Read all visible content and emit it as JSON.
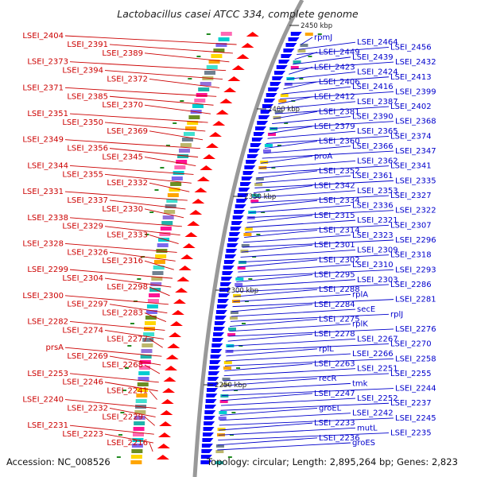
{
  "title": "Lactobacillus casei ATCC 334, complete genome",
  "footer": {
    "accession": "Accession: NC_008526",
    "summary": "Topology: circular; Length: 2,895,264 bp; Genes: 2,823"
  },
  "kbp_labels": [
    "2450 kbp",
    "2400 kbp",
    "2350 kbp",
    "2300 kbp",
    "2250 kbp"
  ],
  "colors": {
    "left_labels": "#cc0000",
    "right_labels": "#0000cc",
    "backbone": "#999999",
    "forward_genes": "#0000ff",
    "reverse_genes": "#ff0000",
    "rna_marks": "#228b22"
  },
  "left_labels": [
    "LSEI_2404",
    "LSEI_2391",
    "LSEI_2389",
    "LSEI_2373",
    "LSEI_2394",
    "LSEI_2372",
    "LSEI_2371",
    "LSEI_2385",
    "LSEI_2370",
    "LSEI_2351",
    "LSEI_2350",
    "LSEI_2369",
    "LSEI_2349",
    "LSEI_2356",
    "LSEI_2345",
    "LSEI_2344",
    "LSEI_2355",
    "LSEI_2332",
    "LSEI_2331",
    "LSEI_2337",
    "LSEI_2330",
    "LSEI_2338",
    "LSEI_2329",
    "LSEI_2333",
    "LSEI_2328",
    "LSEI_2326",
    "LSEI_2316",
    "LSEI_2299",
    "LSEI_2304",
    "LSEI_2298",
    "LSEI_2300",
    "LSEI_2297",
    "LSEI_2283",
    "LSEI_2282",
    "LSEI_2274",
    "LSEI_2277",
    "prsA",
    "LSEI_2269",
    "LSEI_2268",
    "LSEI_2253",
    "LSEI_2246",
    "LSEI_2241",
    "LSEI_2240",
    "LSEI_2232",
    "LSEI_2229",
    "LSEI_2231",
    "LSEI_2223",
    "LSEI_2216"
  ],
  "right_labels": [
    "rpmJ",
    "LSEI_2464",
    "LSEI_2456",
    "LSEI_2449",
    "LSEI_2439",
    "LSEI_2432",
    "LSEI_2423",
    "LSEI_2424",
    "LSEI_2413",
    "LSEI_2406",
    "LSEI_2416",
    "LSEI_2399",
    "LSEI_2412",
    "LSEI_2387",
    "LSEI_2402",
    "LSEI_2381",
    "LSEI_2390",
    "LSEI_2368",
    "LSEI_2379",
    "LSEI_2365",
    "LSEI_2374",
    "LSEI_2360",
    "LSEI_2366",
    "LSEI_2347",
    "proA",
    "LSEI_2362",
    "LSEI_2341",
    "LSEI_2352",
    "LSEI_2361",
    "LSEI_2335",
    "LSEI_2342",
    "LSEI_2353",
    "LSEI_2327",
    "LSEI_2334",
    "LSEI_2336",
    "LSEI_2322",
    "LSEI_2315",
    "LSEI_2321",
    "LSEI_2307",
    "LSEI_2314",
    "LSEI_2323",
    "LSEI_2296",
    "LSEI_2301",
    "LSEI_2309",
    "LSEI_2318",
    "LSEI_2302",
    "LSEI_2310",
    "LSEI_2293",
    "LSEI_2295",
    "LSEI_2303",
    "LSEI_2286",
    "LSEI_2288",
    "rplA",
    "LSEI_2281",
    "LSEI_2284",
    "secE",
    "rplJ",
    "LSEI_2275",
    "rplK",
    "LSEI_2276",
    "LSEI_2278",
    "LSEI_2267",
    "LSEI_2270",
    "rplL",
    "LSEI_2266",
    "LSEI_2258",
    "LSEI_2263",
    "LSEI_2251",
    "LSEI_2255",
    "recR",
    "tmk",
    "LSEI_2244",
    "LSEI_2247",
    "LSEI_2252",
    "LSEI_2237",
    "groEL",
    "LSEI_2242",
    "LSEI_2245",
    "LSEI_2233",
    "mutL",
    "LSEI_2235",
    "LSEI_2236",
    "groES"
  ]
}
